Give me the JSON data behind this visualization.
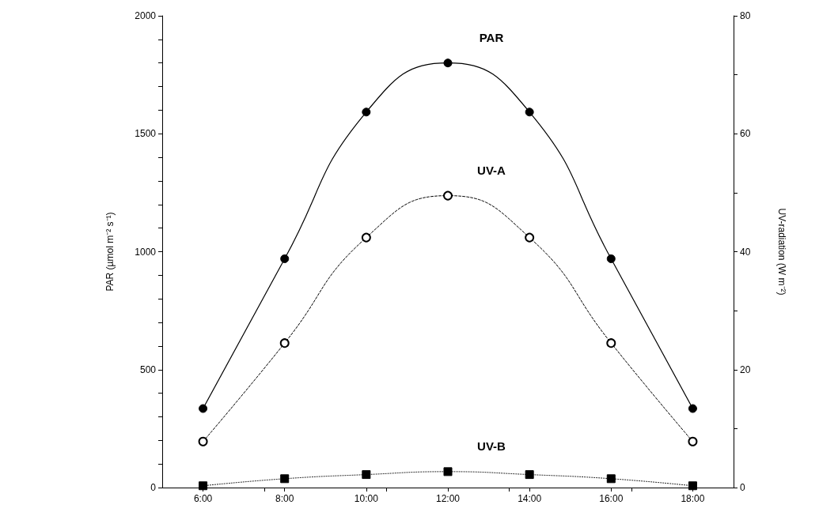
{
  "chart_data": {
    "type": "line",
    "x": [
      6,
      8,
      10,
      12,
      14,
      16,
      18
    ],
    "xlim": [
      5,
      19
    ],
    "xticks": [
      {
        "value": 6,
        "label": "6:00"
      },
      {
        "value": 8,
        "label": "8:00"
      },
      {
        "value": 10,
        "label": "10:00"
      },
      {
        "value": 12,
        "label": "12:00"
      },
      {
        "value": 14,
        "label": "14:00"
      },
      {
        "value": 16,
        "label": "16:00"
      },
      {
        "value": 18,
        "label": "18:00"
      }
    ],
    "ylabel": "PAR (µmol m⁻² s⁻¹)",
    "y2label": "UV-radiation (W m⁻²)",
    "ylim": [
      0,
      2000
    ],
    "yticks": [
      0,
      500,
      1000,
      1500,
      2000
    ],
    "y2lim": [
      0,
      80
    ],
    "y2ticks": [
      0,
      20,
      40,
      60,
      80
    ],
    "series": [
      {
        "name": "PAR",
        "color": "#000000",
        "marker": "circle",
        "line_style": "solid",
        "values": [
          335,
          970,
          1592,
          1800,
          1592,
          970,
          335
        ]
      },
      {
        "name": "UV-A",
        "color": "#000000",
        "marker": "open circle",
        "line_style": "dashed",
        "axis": "y2",
        "values": [
          7.8,
          24.5,
          42.4,
          49.5,
          42.4,
          24.5,
          7.8
        ]
      },
      {
        "name": "UV-B",
        "color": "#000000",
        "marker": "square",
        "line_style": "dotted",
        "axis": "y2",
        "values": [
          0.3,
          1.5,
          2.2,
          2.7,
          2.2,
          1.5,
          0.3
        ]
      }
    ],
    "grid": false,
    "legend": false
  }
}
